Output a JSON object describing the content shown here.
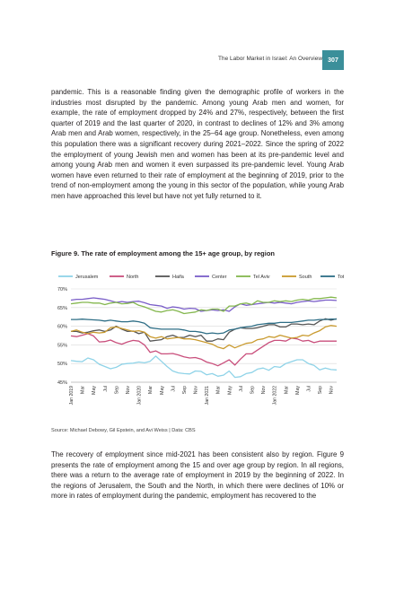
{
  "header": {
    "running_title": "The Labor Market in Israel: An Overview",
    "page_number": "307",
    "accent_color": "#3b8f9a"
  },
  "paragraph_1": "pandemic. This is a reasonable finding given the demographic profile of workers in the industries most disrupted by the pandemic. Among young Arab men and women, for example, the rate of employment dropped by 24% and 27%, respectively, between the first quarter of 2019 and the last quarter of 2020, in contrast to declines of 12% and 3% among Arab men and Arab women, respectively, in the 25–64 age group. Nonetheless, even among this population there was a significant recovery during 2021–2022. Since the spring of 2022 the employment of young Jewish men and women has been at its pre-pandemic level and among young Arab men and women it even surpassed its pre-pandemic level. Young Arab women have even returned to their rate of employment at the beginning of 2019, prior to the trend of non-employment among the young in this sector of the population, while young Arab men have approached this level but have not yet fully returned to it.",
  "figure": {
    "title": "Figure 9. The rate of employment among the 15+ age group, by region",
    "source": "Source: Michael Debowy, Gil Epstein, and Avi Weiss | Data: CBS"
  },
  "paragraph_2": "The recovery of employment since mid-2021 has been consistent also by region. Figure 9 presents the rate of employment among the 15 and over age group by region. In all regions, there was a return to the average rate of employment in 2019 by the beginning of 2022. In the regions of Jerusalem, the South and the North, in which there were declines of 10% or more in rates of employment during the pandemic, employment has recovered to the",
  "chart_data": {
    "type": "line",
    "title": "Figure 9. The rate of employment among the 15+ age group, by region",
    "xlabel": "",
    "ylabel": "",
    "ylim": [
      45,
      70
    ],
    "yticks": [
      "45%",
      "50%",
      "55%",
      "60%",
      "65%",
      "70%"
    ],
    "ytick_values": [
      45,
      50,
      55,
      60,
      65,
      70
    ],
    "grid": true,
    "legend_position": "top",
    "x_tick_labels": [
      "Jan 2019",
      "Mar",
      "May",
      "Jul",
      "Sep",
      "Nov",
      "Jan 2020",
      "Mar",
      "May",
      "Jul",
      "Sep",
      "Nov",
      "Jan 2021",
      "Mar",
      "May",
      "Jul",
      "Sep",
      "Nov",
      "Jan 2022",
      "Mar",
      "May",
      "Jul",
      "Sep",
      "Nov"
    ],
    "x_tick_month_index": [
      0,
      2,
      4,
      6,
      8,
      10,
      12,
      14,
      16,
      18,
      20,
      22,
      24,
      26,
      28,
      30,
      32,
      34,
      36,
      38,
      40,
      42,
      44,
      46
    ],
    "series": [
      {
        "name": "Jerusalem",
        "color": "#8fd3e8",
        "values": [
          50.8,
          50.6,
          50.5,
          51.5,
          51.0,
          49.8,
          49.2,
          48.6,
          49.0,
          49.8,
          50.0,
          50.1,
          50.4,
          50.2,
          50.6,
          52.0,
          50.6,
          49.2,
          48.0,
          47.5,
          47.3,
          47.2,
          48.0,
          47.9,
          47.0,
          47.3,
          46.6,
          46.9,
          48.0,
          46.3,
          46.5,
          47.3,
          47.6,
          48.5,
          48.8,
          48.2,
          49.2,
          49.0,
          50.0,
          50.5,
          51.0,
          51.0,
          50.0,
          49.5,
          48.3,
          48.8,
          48.4,
          48.3
        ]
      },
      {
        "name": "North",
        "color": "#c94f7c",
        "values": [
          57.4,
          57.2,
          57.6,
          58.0,
          57.4,
          55.8,
          55.9,
          56.3,
          55.6,
          55.2,
          55.8,
          56.2,
          56.0,
          55.0,
          53.0,
          53.4,
          52.6,
          52.6,
          52.7,
          52.3,
          51.8,
          51.5,
          51.6,
          51.2,
          50.4,
          50.0,
          49.4,
          50.2,
          51.0,
          49.6,
          51.2,
          52.6,
          52.6,
          53.6,
          54.6,
          55.6,
          56.2,
          56.2,
          56.0,
          56.8,
          56.6,
          56.0,
          56.2,
          55.6,
          56.0,
          56.0,
          56.0,
          56.0
        ]
      },
      {
        "name": "Haifa",
        "color": "#555555",
        "values": [
          58.6,
          58.6,
          58.2,
          58.4,
          58.8,
          59.0,
          58.6,
          59.0,
          60.0,
          59.2,
          58.6,
          58.7,
          58.0,
          58.4,
          56.0,
          56.2,
          56.4,
          57.2,
          57.6,
          57.0,
          57.0,
          57.6,
          57.2,
          57.6,
          56.0,
          56.0,
          56.6,
          56.4,
          58.4,
          59.2,
          59.6,
          59.4,
          59.4,
          59.6,
          60.0,
          60.4,
          60.4,
          59.8,
          59.8,
          60.6,
          60.6,
          60.4,
          60.6,
          60.4,
          61.4,
          62.0,
          61.6,
          62.0
        ]
      },
      {
        "name": "Center",
        "color": "#7a5ec8",
        "values": [
          67.0,
          67.2,
          67.2,
          67.4,
          67.6,
          67.4,
          67.2,
          66.8,
          66.4,
          66.6,
          66.4,
          66.6,
          66.7,
          66.3,
          65.8,
          65.6,
          65.4,
          64.8,
          65.2,
          65.0,
          64.6,
          64.8,
          64.7,
          64.0,
          64.2,
          64.4,
          64.2,
          64.4,
          64.0,
          65.2,
          66.0,
          65.6,
          65.8,
          66.0,
          66.2,
          66.4,
          66.2,
          66.4,
          66.2,
          66.0,
          66.4,
          66.6,
          66.8,
          66.6,
          66.8,
          67.0,
          67.0,
          66.9
        ]
      },
      {
        "name": "Tel Aviv",
        "color": "#84b74e",
        "values": [
          66.0,
          66.2,
          66.4,
          66.4,
          66.2,
          66.2,
          65.8,
          66.2,
          66.4,
          66.0,
          66.1,
          66.4,
          65.6,
          65.2,
          64.6,
          64.0,
          63.8,
          64.2,
          64.4,
          64.0,
          63.4,
          63.6,
          63.8,
          64.4,
          64.2,
          64.6,
          64.6,
          64.0,
          65.4,
          65.4,
          66.0,
          66.2,
          65.8,
          66.8,
          66.4,
          66.4,
          66.8,
          66.6,
          66.8,
          66.6,
          67.0,
          67.2,
          67.0,
          67.4,
          67.4,
          67.6,
          67.8,
          67.6
        ]
      },
      {
        "name": "South",
        "color": "#c99a2e",
        "values": [
          58.6,
          59.0,
          58.4,
          58.0,
          58.4,
          58.2,
          58.4,
          59.6,
          59.8,
          59.4,
          59.0,
          58.6,
          58.8,
          58.4,
          57.2,
          56.8,
          57.2,
          56.6,
          56.8,
          57.0,
          56.6,
          56.6,
          56.4,
          56.0,
          55.6,
          55.2,
          54.4,
          54.0,
          55.0,
          54.2,
          54.8,
          55.4,
          55.6,
          56.4,
          56.6,
          57.2,
          57.0,
          57.6,
          57.2,
          56.8,
          57.0,
          57.6,
          57.4,
          58.2,
          58.8,
          59.8,
          60.2,
          60.0
        ]
      },
      {
        "name": "Total",
        "color": "#2e6e86",
        "values": [
          61.8,
          61.8,
          61.9,
          61.8,
          61.7,
          61.6,
          61.4,
          61.6,
          61.4,
          61.2,
          61.2,
          61.4,
          61.2,
          60.8,
          59.6,
          59.4,
          59.2,
          59.2,
          59.2,
          59.2,
          59.0,
          58.6,
          58.6,
          58.4,
          58.0,
          58.2,
          58.0,
          58.2,
          59.0,
          59.2,
          59.6,
          59.8,
          60.0,
          60.4,
          60.6,
          60.8,
          60.8,
          61.0,
          61.0,
          61.0,
          61.2,
          61.4,
          61.6,
          61.6,
          61.8,
          61.8,
          61.9,
          61.9
        ]
      }
    ]
  }
}
